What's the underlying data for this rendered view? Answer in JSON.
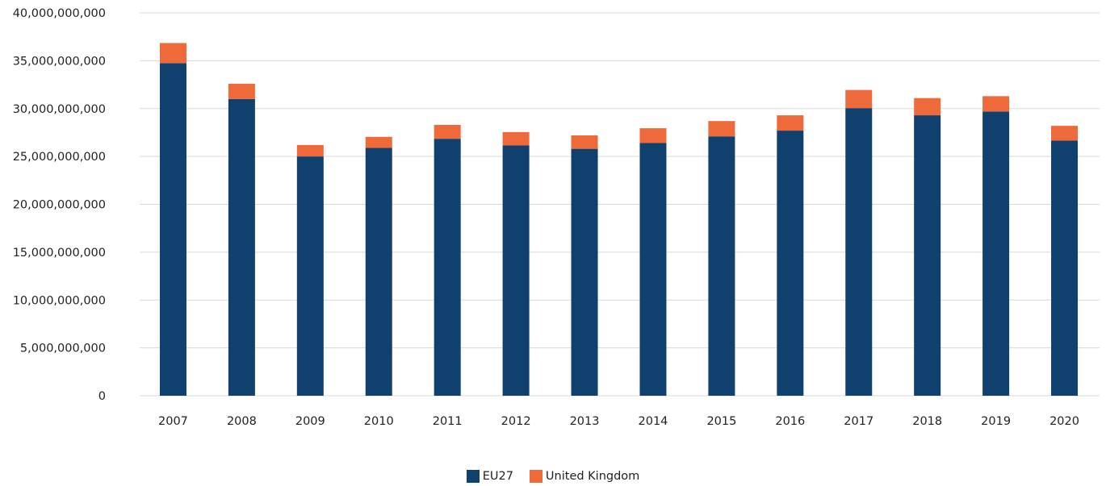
{
  "colors": {
    "eu27": "#10416E",
    "uk": "#EE6A3A",
    "grid": "#D9D9D9"
  },
  "chart_data": {
    "type": "bar",
    "stacked": true,
    "title": "",
    "xlabel": "",
    "ylabel": "",
    "ylim": [
      0,
      40000000000
    ],
    "y_ticks": [
      "0",
      "5,000,000,000",
      "10,000,000,000",
      "15,000,000,000",
      "20,000,000,000",
      "25,000,000,000",
      "30,000,000,000",
      "35,000,000,000",
      "40,000,000,000"
    ],
    "y_tick_values": [
      0,
      5000000000,
      10000000000,
      15000000000,
      20000000000,
      25000000000,
      30000000000,
      35000000000,
      40000000000
    ],
    "grid": true,
    "legend_position": "bottom",
    "categories": [
      "2007",
      "2008",
      "2009",
      "2010",
      "2011",
      "2012",
      "2013",
      "2014",
      "2015",
      "2016",
      "2017",
      "2018",
      "2019",
      "2020"
    ],
    "series": [
      {
        "name": "EU27",
        "values": [
          34750000000,
          31000000000,
          25000000000,
          25900000000,
          26850000000,
          26150000000,
          25800000000,
          26400000000,
          27100000000,
          27700000000,
          30050000000,
          29300000000,
          29700000000,
          26650000000
        ]
      },
      {
        "name": "United Kingdom",
        "values": [
          2100000000,
          1600000000,
          1200000000,
          1150000000,
          1450000000,
          1400000000,
          1400000000,
          1550000000,
          1600000000,
          1600000000,
          1900000000,
          1800000000,
          1600000000,
          1550000000
        ]
      }
    ]
  }
}
